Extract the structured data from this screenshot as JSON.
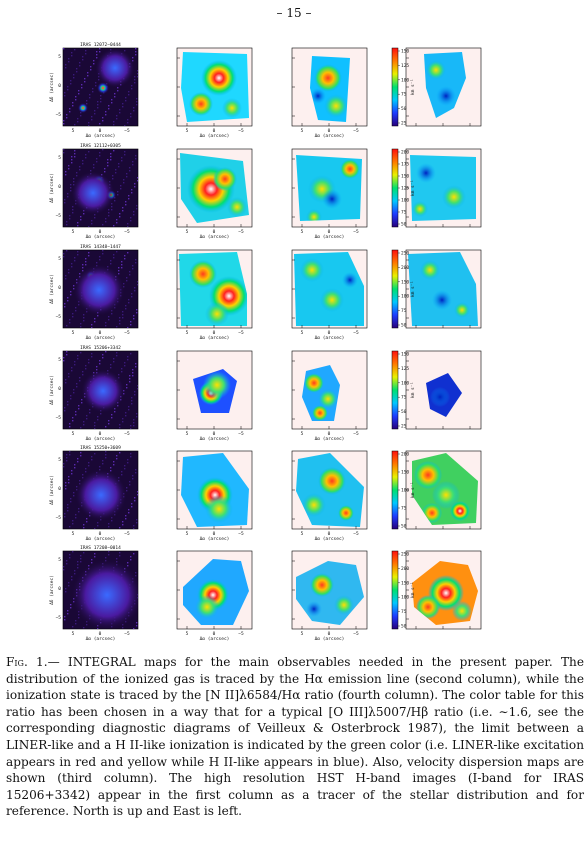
{
  "page_number": "– 15 –",
  "rows": [
    {
      "label": "IRAS 12072−0444",
      "cbar_unit": "km s⁻¹",
      "cbar_ticks": [
        "150",
        "125",
        "100",
        "75",
        "50",
        "25"
      ]
    },
    {
      "label": "IRAS 12112+0305",
      "cbar_unit": "km s⁻¹",
      "cbar_ticks": [
        "200",
        "175",
        "150",
        "125",
        "100",
        "75",
        "50"
      ]
    },
    {
      "label": "IRAS 14348−1447",
      "cbar_unit": "km s⁻¹",
      "cbar_ticks": [
        "250",
        "200",
        "150",
        "100",
        "75",
        "50"
      ]
    },
    {
      "label": "IRAS 15206+3342",
      "cbar_unit": "km s⁻¹",
      "cbar_ticks": [
        "150",
        "125",
        "100",
        "75",
        "50",
        "25"
      ]
    },
    {
      "label": "IRAS 15250+3609",
      "cbar_unit": "km s⁻¹",
      "cbar_ticks": [
        "200",
        "150",
        "100",
        "75",
        "50"
      ]
    },
    {
      "label": "IRAS 17208−0014",
      "cbar_unit": "km s⁻¹",
      "cbar_ticks": [
        "250",
        "200",
        "150",
        "100",
        "75",
        "50"
      ]
    }
  ],
  "axis": {
    "xlabel": "Δα (arcsec)",
    "ylabel": "Δδ (arcsec)",
    "xticks": [
      "5",
      "0",
      "−5"
    ],
    "yticks": [
      "5",
      "0",
      "−5"
    ]
  },
  "caption": {
    "label": "Fig. 1.—",
    "text": "INTEGRAL maps for the main observables needed in the present paper. The distribution of the ionized gas is traced by the Hα emission line (second column), while the ionization state is traced by the [N II]λ6584/Hα ratio (fourth column). The color table for this ratio has been chosen in a way that for a typical [O III]λ5007/Hβ ratio (i.e. ∼1.6, see the corresponding diagnostic diagrams of Veilleux & Osterbrock 1987), the limit between a LINER-like and a H II-like ionization is indicated by the green color (i.e. LINER-like excitation appears in red and yellow while H II-like appears in blue). Also, velocity dispersion maps are shown (third column). The high resolution HST H-band images (I-band for IRAS 15206+3342) appear in the first column as a tracer of the stellar distribution and for reference. North is up and East is left."
  },
  "colors": {
    "map_background": "#fdf0ef",
    "hst_background": "#1a0836",
    "colormap": [
      "#28007a",
      "#1e3cff",
      "#00c8ff",
      "#00e070",
      "#e8f000",
      "#ff7a00",
      "#ff1010",
      "#ffffff"
    ]
  }
}
